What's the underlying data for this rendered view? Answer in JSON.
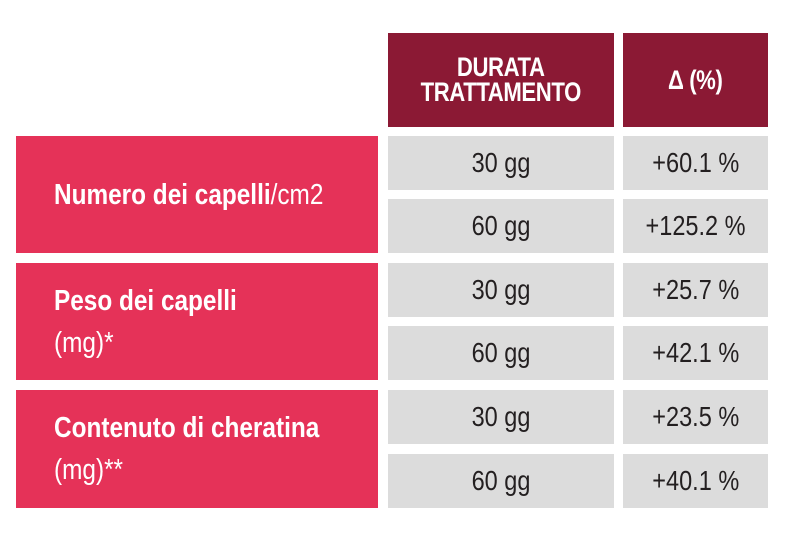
{
  "table": {
    "headers": {
      "duration": [
        "DURATA",
        "TRATTAMENTO"
      ],
      "delta": "Δ (%)"
    },
    "groups": [
      {
        "label_bold": "Numero dei capelli",
        "label_regular": "/cm2",
        "label_line2": "",
        "rows": [
          {
            "duration": "30 gg",
            "delta": "+60.1 %"
          },
          {
            "duration": "60 gg",
            "delta": "+125.2 %"
          }
        ]
      },
      {
        "label_bold": "Peso dei capelli",
        "label_regular": "",
        "label_line2": "(mg)*",
        "rows": [
          {
            "duration": "30 gg",
            "delta": "+25.7 %"
          },
          {
            "duration": "60 gg",
            "delta": "+42.1 %"
          }
        ]
      },
      {
        "label_bold": "Contenuto di cheratina",
        "label_regular": "",
        "label_line2": "(mg)**",
        "rows": [
          {
            "duration": "30 gg",
            "delta": "+23.5 %"
          },
          {
            "duration": "60 gg",
            "delta": "+40.1 %"
          }
        ]
      }
    ],
    "colors": {
      "header_bg": "#8b1934",
      "label_bg": "#e53258",
      "data_bg": "#dcdcdc",
      "data_text": "#231f20"
    }
  }
}
